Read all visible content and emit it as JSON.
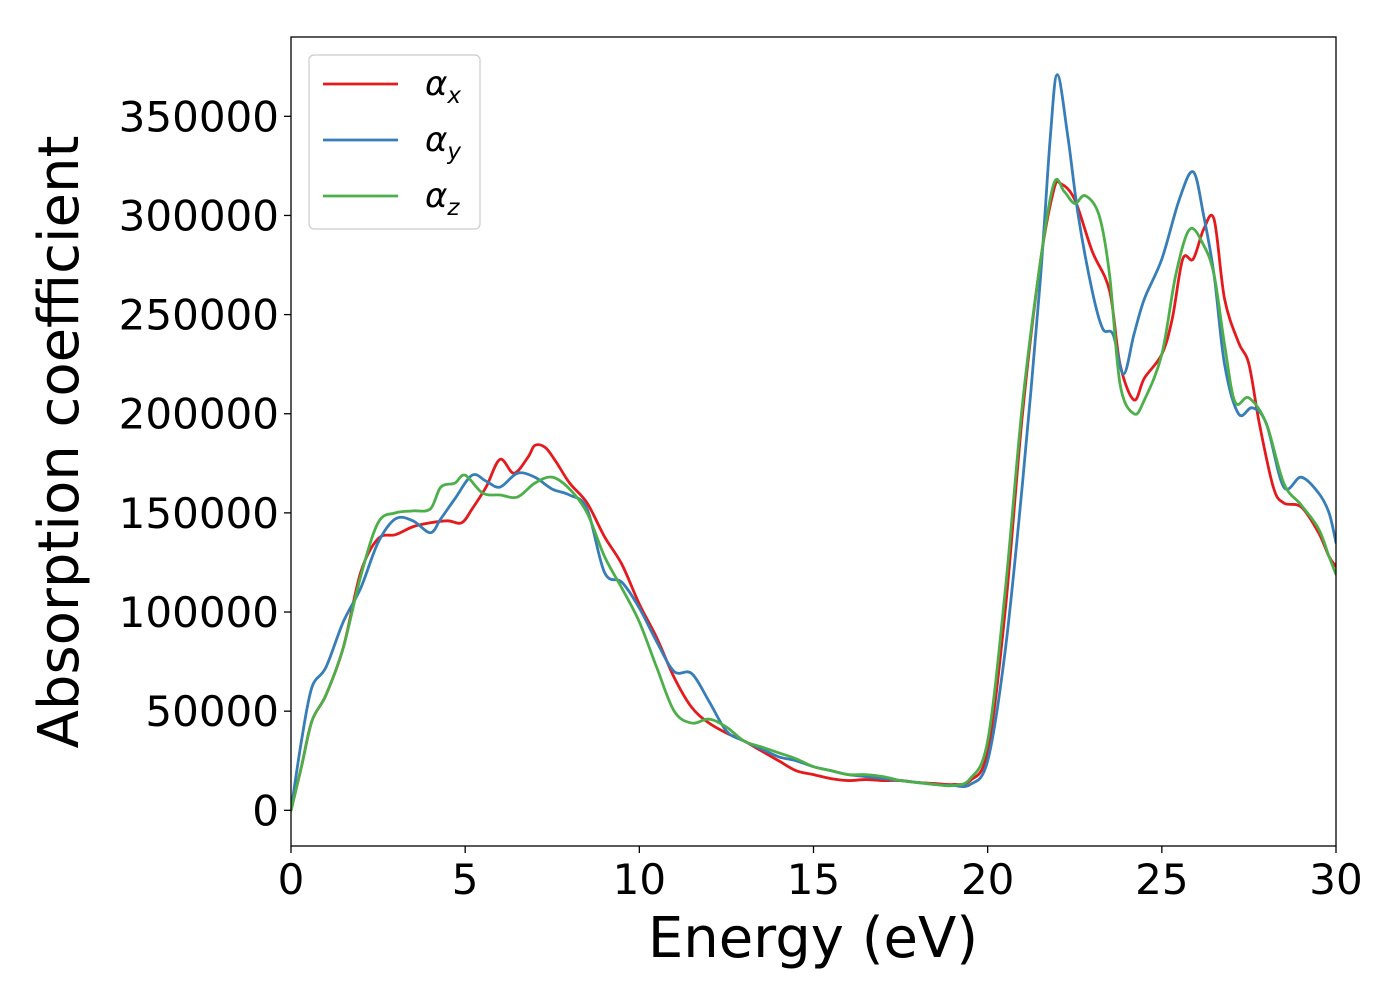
{
  "chart_data": {
    "type": "line",
    "title": "",
    "xlabel": "Energy (eV)",
    "ylabel": "Absorption coefficient",
    "xlim": [
      0,
      30
    ],
    "ylim": [
      -18000,
      390000
    ],
    "x_ticks": [
      0,
      5,
      10,
      15,
      20,
      25,
      30
    ],
    "y_ticks": [
      0,
      50000,
      100000,
      150000,
      200000,
      250000,
      300000,
      350000
    ],
    "grid": false,
    "legend_position": "top-left",
    "series": [
      {
        "name": "α_x",
        "label_base": "α",
        "label_sub": "x",
        "color": "#e41a1c",
        "points": [
          [
            0,
            0
          ],
          [
            0.3,
            22000
          ],
          [
            0.6,
            45000
          ],
          [
            1.0,
            58000
          ],
          [
            1.5,
            82000
          ],
          [
            2.0,
            120000
          ],
          [
            2.5,
            137000
          ],
          [
            3.0,
            139000
          ],
          [
            3.5,
            143000
          ],
          [
            4.0,
            145000
          ],
          [
            4.5,
            146000
          ],
          [
            4.9,
            145000
          ],
          [
            5.2,
            152000
          ],
          [
            5.6,
            163000
          ],
          [
            6.0,
            177000
          ],
          [
            6.4,
            170000
          ],
          [
            6.8,
            178000
          ],
          [
            7.0,
            184000
          ],
          [
            7.3,
            183000
          ],
          [
            7.6,
            176000
          ],
          [
            8.0,
            165000
          ],
          [
            8.5,
            155000
          ],
          [
            9.0,
            138000
          ],
          [
            9.5,
            124000
          ],
          [
            10.0,
            104000
          ],
          [
            10.5,
            87000
          ],
          [
            11.0,
            67000
          ],
          [
            11.5,
            52000
          ],
          [
            12.0,
            44000
          ],
          [
            12.5,
            39000
          ],
          [
            13.0,
            35000
          ],
          [
            13.5,
            30000
          ],
          [
            14.0,
            25000
          ],
          [
            14.5,
            20000
          ],
          [
            15.0,
            18000
          ],
          [
            15.5,
            16000
          ],
          [
            16.0,
            15000
          ],
          [
            16.5,
            15500
          ],
          [
            17.0,
            15000
          ],
          [
            17.5,
            15000
          ],
          [
            18.0,
            14000
          ],
          [
            18.5,
            13500
          ],
          [
            19.0,
            13000
          ],
          [
            19.5,
            15000
          ],
          [
            20.0,
            30000
          ],
          [
            20.5,
            100000
          ],
          [
            21.0,
            200000
          ],
          [
            21.5,
            275000
          ],
          [
            21.9,
            313000
          ],
          [
            22.1,
            316000
          ],
          [
            22.5,
            308000
          ],
          [
            23.0,
            282000
          ],
          [
            23.5,
            262000
          ],
          [
            23.8,
            225000
          ],
          [
            24.2,
            207000
          ],
          [
            24.5,
            218000
          ],
          [
            25.0,
            230000
          ],
          [
            25.3,
            248000
          ],
          [
            25.6,
            278000
          ],
          [
            25.9,
            278000
          ],
          [
            26.2,
            293000
          ],
          [
            26.5,
            298000
          ],
          [
            26.8,
            258000
          ],
          [
            27.2,
            236000
          ],
          [
            27.5,
            225000
          ],
          [
            27.8,
            195000
          ],
          [
            28.2,
            163000
          ],
          [
            28.5,
            155000
          ],
          [
            29.0,
            153000
          ],
          [
            29.5,
            140000
          ],
          [
            29.8,
            128000
          ],
          [
            30.0,
            123000
          ]
        ]
      },
      {
        "name": "α_y",
        "label_base": "α",
        "label_sub": "y",
        "color": "#377eb8",
        "points": [
          [
            0,
            0
          ],
          [
            0.3,
            35000
          ],
          [
            0.6,
            62000
          ],
          [
            1.0,
            72000
          ],
          [
            1.5,
            95000
          ],
          [
            2.0,
            112000
          ],
          [
            2.5,
            135000
          ],
          [
            3.0,
            147000
          ],
          [
            3.5,
            146000
          ],
          [
            4.0,
            140000
          ],
          [
            4.3,
            147000
          ],
          [
            4.7,
            157000
          ],
          [
            5.2,
            169000
          ],
          [
            5.6,
            166000
          ],
          [
            6.0,
            163000
          ],
          [
            6.5,
            170000
          ],
          [
            7.0,
            168000
          ],
          [
            7.5,
            162000
          ],
          [
            8.0,
            159000
          ],
          [
            8.5,
            152000
          ],
          [
            9.0,
            120000
          ],
          [
            9.5,
            115000
          ],
          [
            10.0,
            102000
          ],
          [
            10.5,
            85000
          ],
          [
            11.0,
            70000
          ],
          [
            11.5,
            69000
          ],
          [
            12.0,
            55000
          ],
          [
            12.5,
            40000
          ],
          [
            13.0,
            35000
          ],
          [
            13.5,
            31000
          ],
          [
            14.0,
            27000
          ],
          [
            14.5,
            25000
          ],
          [
            15.0,
            22000
          ],
          [
            15.5,
            20000
          ],
          [
            16.0,
            18000
          ],
          [
            16.5,
            17000
          ],
          [
            17.0,
            16000
          ],
          [
            17.5,
            15000
          ],
          [
            18.0,
            14000
          ],
          [
            18.5,
            13000
          ],
          [
            19.0,
            12500
          ],
          [
            19.5,
            13000
          ],
          [
            20.0,
            25000
          ],
          [
            20.5,
            80000
          ],
          [
            21.0,
            165000
          ],
          [
            21.5,
            265000
          ],
          [
            21.8,
            340000
          ],
          [
            22.0,
            371000
          ],
          [
            22.3,
            340000
          ],
          [
            22.6,
            300000
          ],
          [
            23.0,
            262000
          ],
          [
            23.3,
            243000
          ],
          [
            23.6,
            240000
          ],
          [
            23.9,
            220000
          ],
          [
            24.2,
            240000
          ],
          [
            24.5,
            258000
          ],
          [
            25.0,
            278000
          ],
          [
            25.5,
            308000
          ],
          [
            25.9,
            322000
          ],
          [
            26.2,
            300000
          ],
          [
            26.5,
            270000
          ],
          [
            26.8,
            225000
          ],
          [
            27.2,
            200000
          ],
          [
            27.6,
            203000
          ],
          [
            28.0,
            195000
          ],
          [
            28.5,
            163000
          ],
          [
            29.0,
            168000
          ],
          [
            29.5,
            160000
          ],
          [
            29.8,
            150000
          ],
          [
            30.0,
            135000
          ]
        ]
      },
      {
        "name": "α_z",
        "label_base": "α",
        "label_sub": "z",
        "color": "#4daf4a",
        "points": [
          [
            0,
            0
          ],
          [
            0.3,
            22000
          ],
          [
            0.6,
            45000
          ],
          [
            1.0,
            58000
          ],
          [
            1.5,
            82000
          ],
          [
            2.0,
            118000
          ],
          [
            2.5,
            145000
          ],
          [
            3.0,
            150000
          ],
          [
            3.5,
            151000
          ],
          [
            4.0,
            152000
          ],
          [
            4.3,
            163000
          ],
          [
            4.7,
            165000
          ],
          [
            5.0,
            169000
          ],
          [
            5.5,
            160000
          ],
          [
            6.0,
            159000
          ],
          [
            6.5,
            158000
          ],
          [
            7.0,
            165000
          ],
          [
            7.5,
            168000
          ],
          [
            8.0,
            162000
          ],
          [
            8.5,
            150000
          ],
          [
            9.0,
            128000
          ],
          [
            9.5,
            112000
          ],
          [
            10.0,
            95000
          ],
          [
            10.5,
            72000
          ],
          [
            11.0,
            50000
          ],
          [
            11.5,
            44000
          ],
          [
            12.0,
            46000
          ],
          [
            12.5,
            42000
          ],
          [
            13.0,
            35000
          ],
          [
            13.5,
            32000
          ],
          [
            14.0,
            29000
          ],
          [
            14.5,
            26000
          ],
          [
            15.0,
            22000
          ],
          [
            15.5,
            20000
          ],
          [
            16.0,
            18000
          ],
          [
            16.5,
            18000
          ],
          [
            17.0,
            17000
          ],
          [
            17.5,
            15000
          ],
          [
            18.0,
            14000
          ],
          [
            18.5,
            13000
          ],
          [
            19.0,
            12500
          ],
          [
            19.5,
            16000
          ],
          [
            20.0,
            35000
          ],
          [
            20.5,
            110000
          ],
          [
            21.0,
            205000
          ],
          [
            21.5,
            275000
          ],
          [
            21.9,
            316000
          ],
          [
            22.2,
            312000
          ],
          [
            22.5,
            306000
          ],
          [
            22.8,
            310000
          ],
          [
            23.2,
            300000
          ],
          [
            23.5,
            270000
          ],
          [
            23.8,
            215000
          ],
          [
            24.2,
            200000
          ],
          [
            24.5,
            207000
          ],
          [
            25.0,
            230000
          ],
          [
            25.4,
            270000
          ],
          [
            25.8,
            293000
          ],
          [
            26.2,
            285000
          ],
          [
            26.5,
            270000
          ],
          [
            26.8,
            235000
          ],
          [
            27.1,
            206000
          ],
          [
            27.5,
            208000
          ],
          [
            28.0,
            195000
          ],
          [
            28.5,
            165000
          ],
          [
            29.0,
            154000
          ],
          [
            29.5,
            142000
          ],
          [
            29.8,
            128000
          ],
          [
            30.0,
            119000
          ]
        ]
      }
    ]
  }
}
